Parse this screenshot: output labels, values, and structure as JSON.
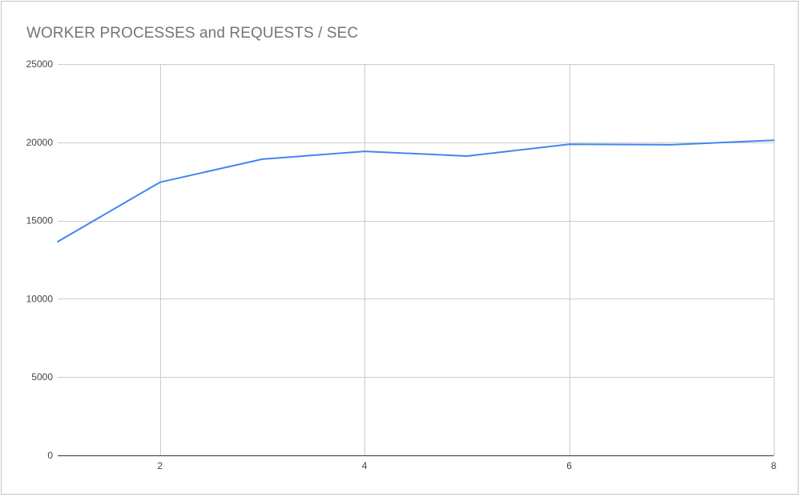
{
  "chart_data": {
    "type": "line",
    "title": "WORKER PROCESSES and REQUESTS / SEC",
    "xlabel": "",
    "ylabel": "",
    "x": [
      1,
      2,
      3,
      4,
      5,
      6,
      7,
      8
    ],
    "series": [
      {
        "values": [
          13650,
          17450,
          18920,
          19420,
          19120,
          19870,
          19840,
          20130
        ],
        "color": "#4285f4"
      }
    ],
    "xlim": [
      1,
      8
    ],
    "ylim": [
      0,
      25000
    ],
    "x_ticks": [
      2,
      4,
      6,
      8
    ],
    "y_ticks": [
      0,
      5000,
      10000,
      15000,
      20000,
      25000
    ],
    "grid": true,
    "legend": "none",
    "colors": {
      "grid": "#cccccc",
      "axis": "#333333",
      "title": "#757575",
      "tick": "#444444"
    }
  }
}
